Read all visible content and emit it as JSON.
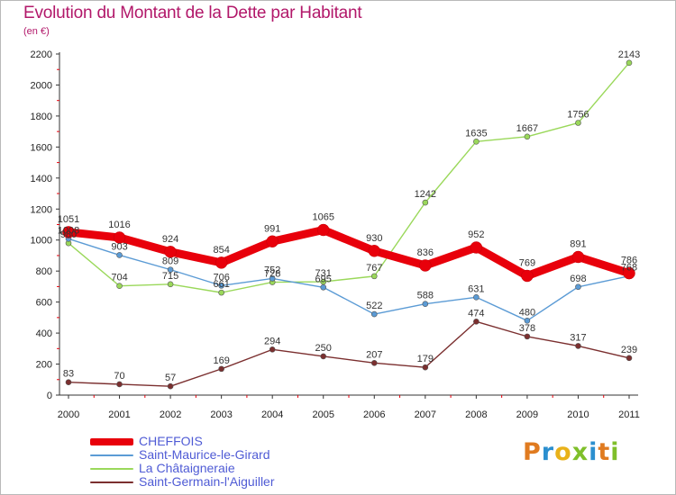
{
  "header": {
    "title": "Evolution du Montant de la Dette par Habitant",
    "subtitle": "(en €)"
  },
  "logo": {
    "letters": [
      "P",
      "r",
      "o",
      "x",
      "i",
      "t",
      "i"
    ],
    "colors": [
      "#e07b20",
      "#2b8fcf",
      "#e9b21a",
      "#7fbf2a",
      "#2b8fcf",
      "#e07b20",
      "#7fbf2a"
    ]
  },
  "chart_data": {
    "type": "line",
    "title": "Evolution du Montant de la Dette par Habitant",
    "subtitle": "(en €)",
    "xlabel": "",
    "ylabel": "",
    "ylim": [
      0,
      2200
    ],
    "yticks": [
      0,
      200,
      400,
      600,
      800,
      1000,
      1200,
      1400,
      1600,
      1800,
      2000,
      2200
    ],
    "grid": false,
    "legend_position": "bottom-left",
    "x": [
      "2000",
      "2001",
      "2002",
      "2003",
      "2004",
      "2005",
      "2006",
      "2007",
      "2008",
      "2009",
      "2010",
      "2011"
    ],
    "series": [
      {
        "name": "CHEFFOIS",
        "color": "#e8000b",
        "values": [
          1051,
          1016,
          924,
          854,
          991,
          1065,
          930,
          836,
          952,
          769,
          891,
          786
        ]
      },
      {
        "name": "Saint-Maurice-le-Girard",
        "color": "#5b9bd5",
        "values": [
          1008,
          903,
          809,
          706,
          752,
          695,
          522,
          588,
          631,
          480,
          698,
          768
        ]
      },
      {
        "name": "La Châtaigneraie",
        "color": "#9ad85a",
        "values": [
          980,
          704,
          715,
          661,
          728,
          731,
          767,
          1242,
          1635,
          1667,
          1756,
          2143
        ]
      },
      {
        "name": "Saint-Germain-l'Aiguiller",
        "color": "#7b2f2f",
        "values": [
          83,
          70,
          57,
          169,
          294,
          250,
          207,
          179,
          474,
          378,
          317,
          239
        ]
      }
    ]
  }
}
